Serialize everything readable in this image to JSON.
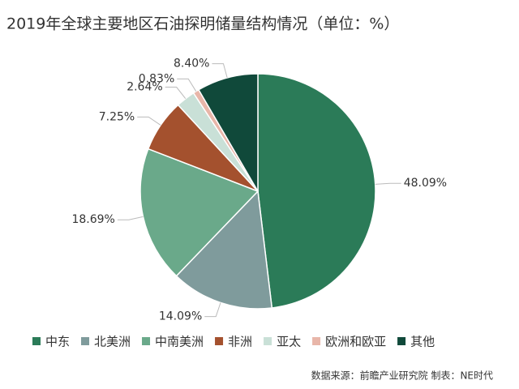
{
  "chart_data": {
    "type": "pie",
    "title": "2019年全球主要地区石油探明储量结构情况（单位：%）",
    "categories": [
      "中东",
      "北美洲",
      "中南美洲",
      "非洲",
      "亚太",
      "欧洲和欧亚",
      "其他"
    ],
    "values": [
      48.09,
      14.09,
      18.69,
      7.25,
      2.64,
      0.83,
      8.4
    ],
    "value_labels": [
      "48.09%",
      "14.09%",
      "18.69%",
      "7.25%",
      "2.64%",
      "0.83%",
      "8.40%"
    ],
    "colors": [
      "#2b7b58",
      "#7f9b9c",
      "#6aa98a",
      "#a4512e",
      "#c9e0d7",
      "#e8b6a9",
      "#10493a"
    ],
    "source": "数据来源：前瞻产业研究院  制表：NE时代"
  }
}
